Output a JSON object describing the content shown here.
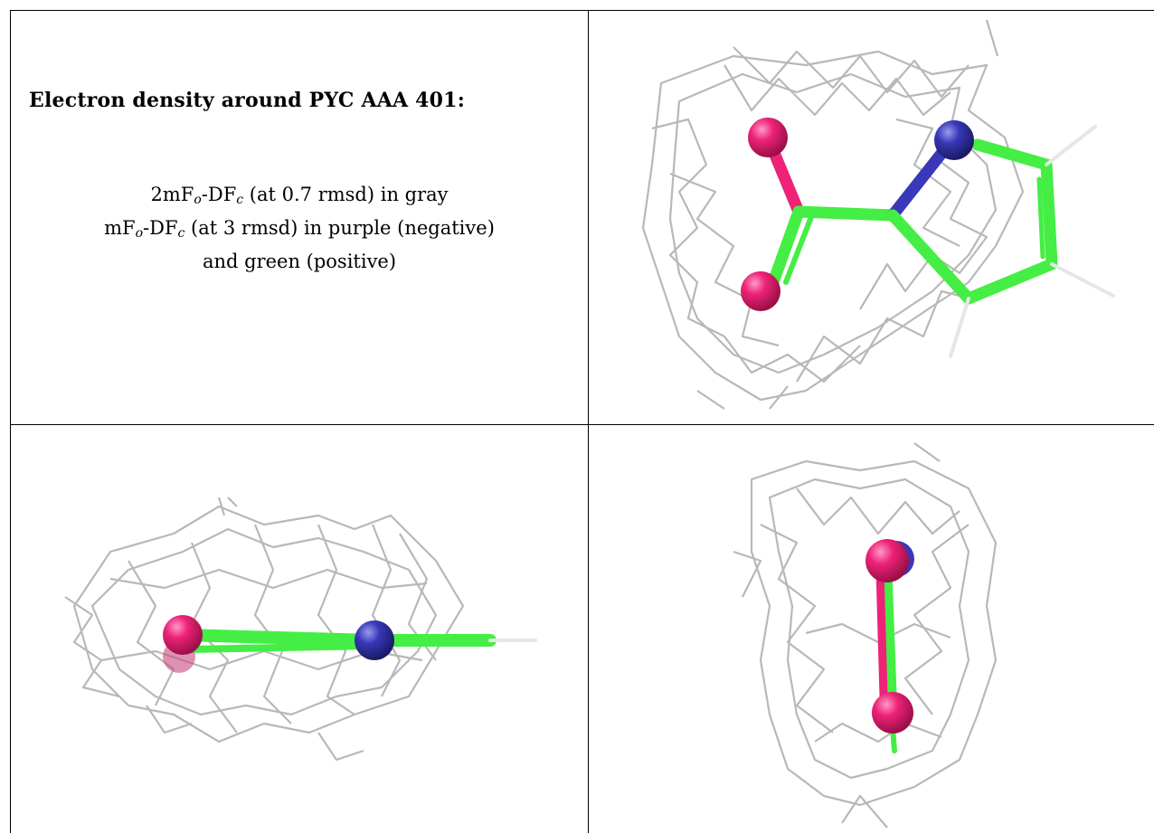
{
  "title": "Electron density around PYC AAA 401:",
  "legend": {
    "line1": {
      "prefix": "2mF",
      "sub1": "o",
      "mid": "-DF",
      "sub2": "c",
      "rest": " (at 0.7 rmsd) in gray"
    },
    "line2": {
      "prefix": "mF",
      "sub1": "o",
      "mid": "-DF",
      "sub2": "c",
      "rest": " (at 3 rmsd) in purple (negative)"
    },
    "line3": "and green (positive)"
  },
  "colors": {
    "mesh": "#b8b8b8",
    "carbon": "#44ee44",
    "oxygen": "#ee2277",
    "nitrogen": "#3838b8",
    "hydrogen": "#e6e6e6"
  },
  "panels": [
    {
      "view": "top-right",
      "subject": "PYC ligand face-on with density mesh"
    },
    {
      "view": "bottom-left",
      "subject": "PYC ligand edge-on horizontal with density mesh"
    },
    {
      "view": "bottom-right",
      "subject": "PYC ligand edge-on vertical with density mesh"
    }
  ]
}
